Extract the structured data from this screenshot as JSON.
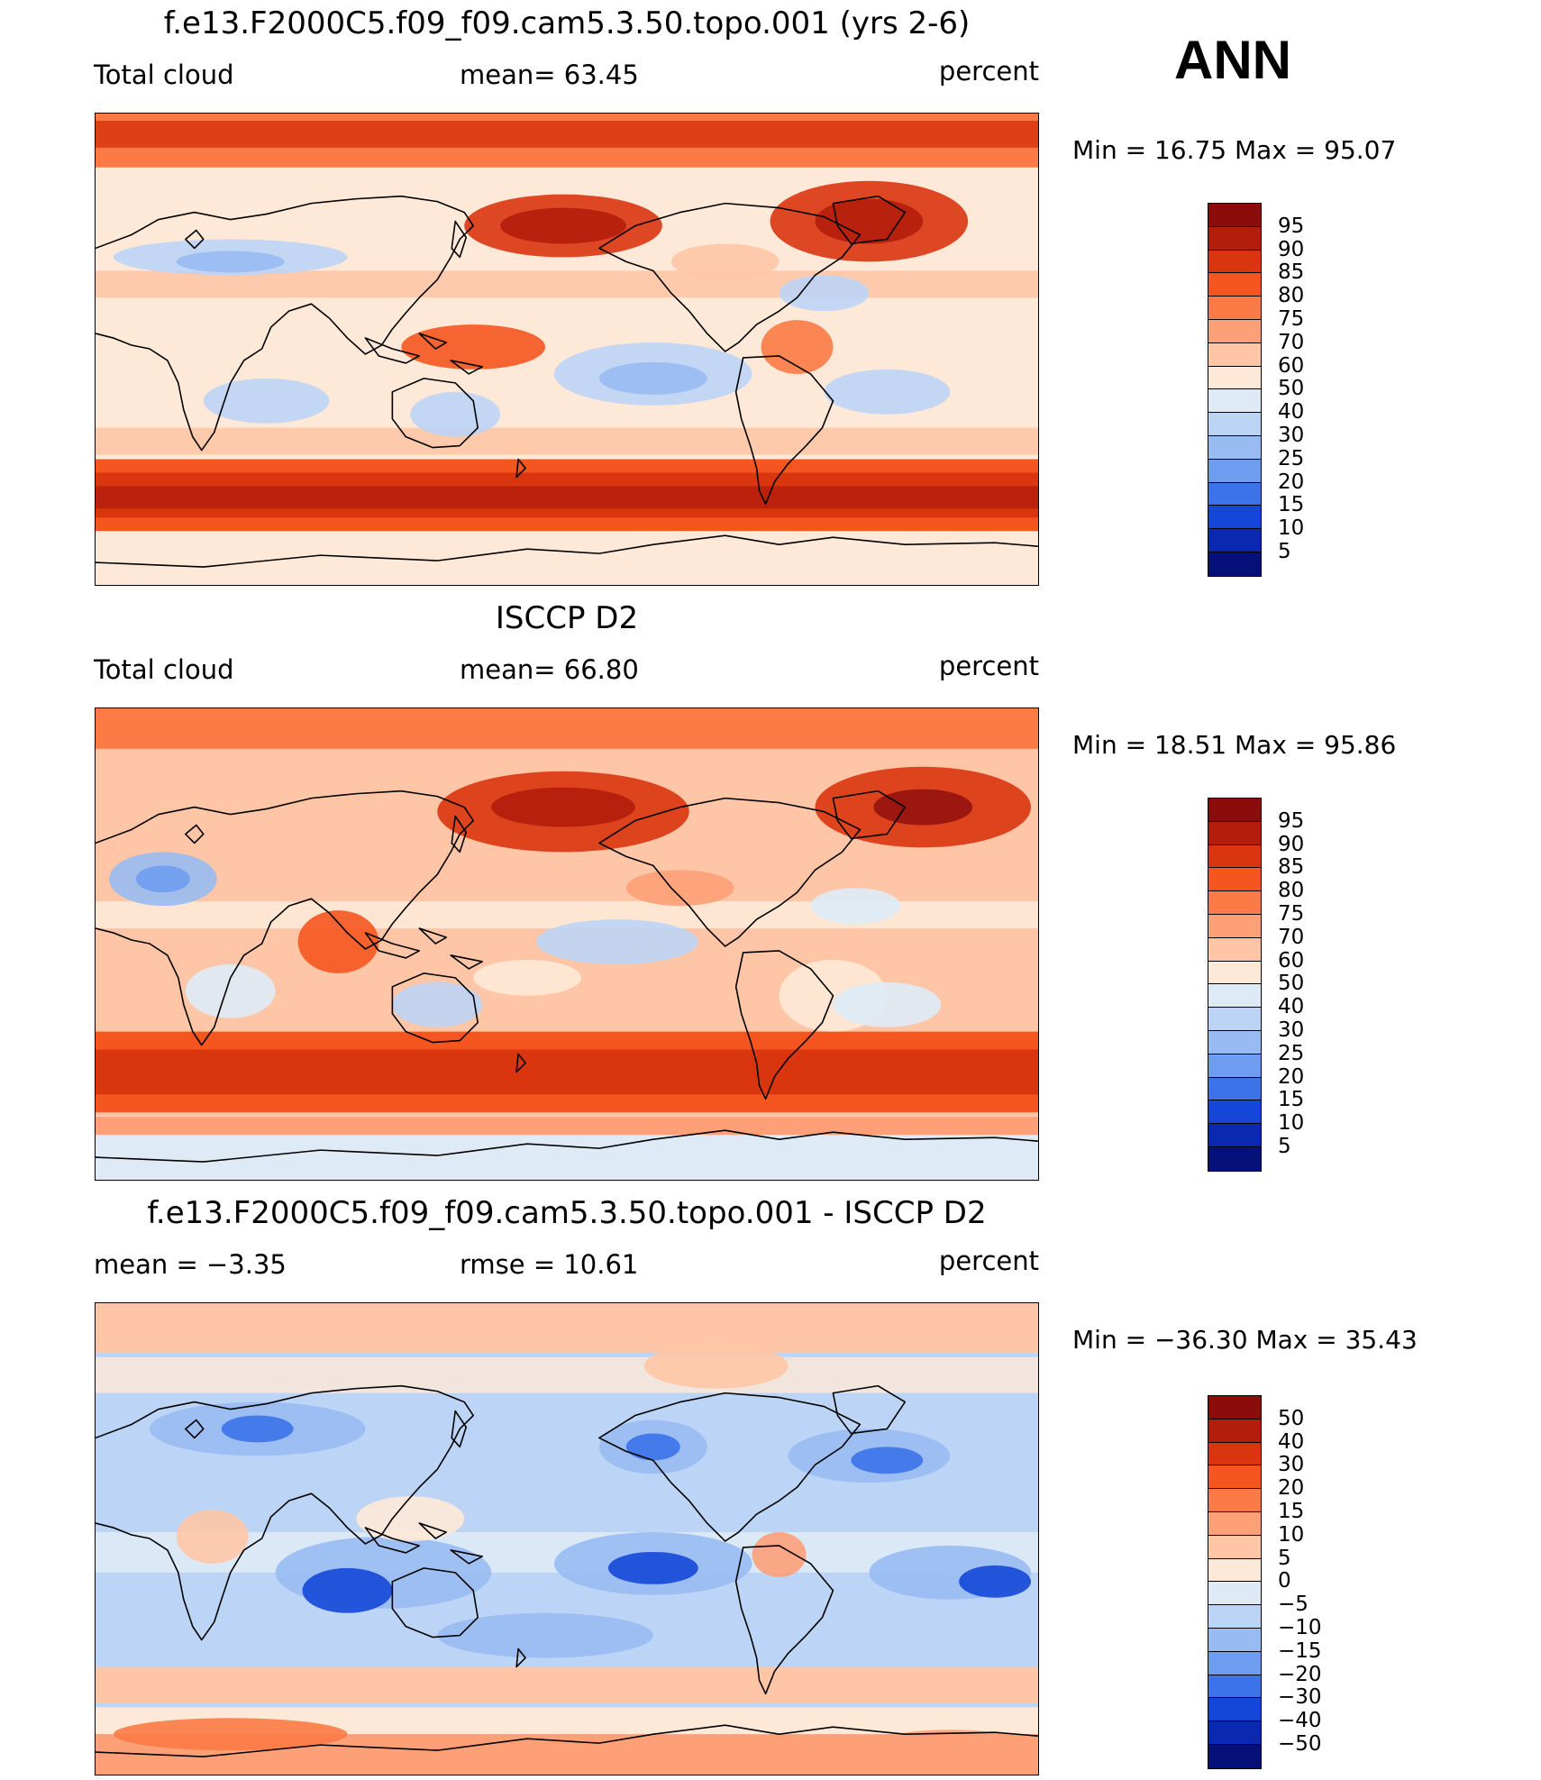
{
  "season": "ANN",
  "panels": [
    {
      "title": "f.e13.F2000C5.f09_f09.cam5.3.50.topo.001 (yrs 2-6)",
      "left_label": "Total cloud",
      "mid_label": "mean=   63.45",
      "right_label": "percent",
      "minmax": "Min  =   16.75  Max  =   95.07",
      "colorbar": {
        "labels": [
          "95",
          "90",
          "85",
          "80",
          "75",
          "70",
          "60",
          "50",
          "40",
          "30",
          "25",
          "20",
          "15",
          "10",
          "5"
        ],
        "colors": [
          "#8c0c0c",
          "#b31d0b",
          "#d9350f",
          "#f5551f",
          "#fb7a45",
          "#fda078",
          "#fec6a6",
          "#fee9d8",
          "#deebf7",
          "#bcd4f6",
          "#98bbf2",
          "#6e9cf0",
          "#3c72ea",
          "#1447d8",
          "#0a28b0",
          "#06107a"
        ]
      },
      "map_style": "model"
    },
    {
      "title": "ISCCP D2",
      "left_label": "Total cloud",
      "mid_label": "mean=   66.80",
      "right_label": "percent",
      "minmax": "Min  =   18.51  Max  =   95.86",
      "colorbar": {
        "labels": [
          "95",
          "90",
          "85",
          "80",
          "75",
          "70",
          "60",
          "50",
          "40",
          "30",
          "25",
          "20",
          "15",
          "10",
          "5"
        ],
        "colors": [
          "#8c0c0c",
          "#b31d0b",
          "#d9350f",
          "#f5551f",
          "#fb7a45",
          "#fda078",
          "#fec6a6",
          "#fee9d8",
          "#deebf7",
          "#bcd4f6",
          "#98bbf2",
          "#6e9cf0",
          "#3c72ea",
          "#1447d8",
          "#0a28b0",
          "#06107a"
        ]
      },
      "map_style": "obs"
    },
    {
      "title": "f.e13.F2000C5.f09_f09.cam5.3.50.topo.001 - ISCCP D2",
      "left_label": "mean  =    −3.35",
      "mid_label": "rmse  =    10.61",
      "right_label": "percent",
      "minmax": "Min  = −36.30  Max  =    35.43",
      "colorbar": {
        "labels": [
          "50",
          "40",
          "30",
          "20",
          "15",
          "10",
          "5",
          "0",
          "−5",
          "−10",
          "−15",
          "−20",
          "−30",
          "−40",
          "−50"
        ],
        "colors": [
          "#8c0c0c",
          "#b31d0b",
          "#d9350f",
          "#f5551f",
          "#fb7a45",
          "#fda078",
          "#fec6a6",
          "#fee9d8",
          "#deebf7",
          "#bcd4f6",
          "#98bbf2",
          "#6e9cf0",
          "#3c72ea",
          "#1447d8",
          "#0a28b0",
          "#06107a"
        ]
      },
      "map_style": "diff"
    }
  ]
}
